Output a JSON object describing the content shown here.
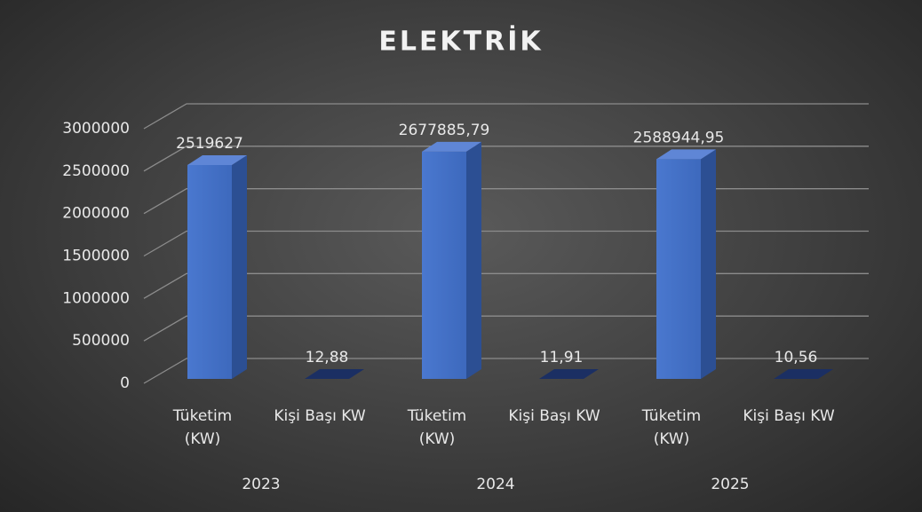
{
  "chart_data": {
    "type": "bar3d",
    "title": "ELEKTRİK",
    "categories": [
      "Tüketim (KW)",
      "Kişi Başı KW",
      "Tüketim (KW)",
      "Kişi Başı KW",
      "Tüketim (KW)",
      "Kişi Başı KW"
    ],
    "groups": [
      "2023",
      "2024",
      "2025"
    ],
    "values": [
      2519627,
      12.88,
      2677885.79,
      11.91,
      2588944.95,
      10.56
    ],
    "value_labels": [
      "2519627",
      "12,88",
      "2677885,79",
      "11,91",
      "2588944,95",
      "10,56"
    ],
    "color": "#4472c4",
    "ylim": [
      0,
      3000000
    ],
    "yticks": [
      0,
      500000,
      1000000,
      1500000,
      2000000,
      2500000,
      3000000
    ],
    "grid": true
  }
}
